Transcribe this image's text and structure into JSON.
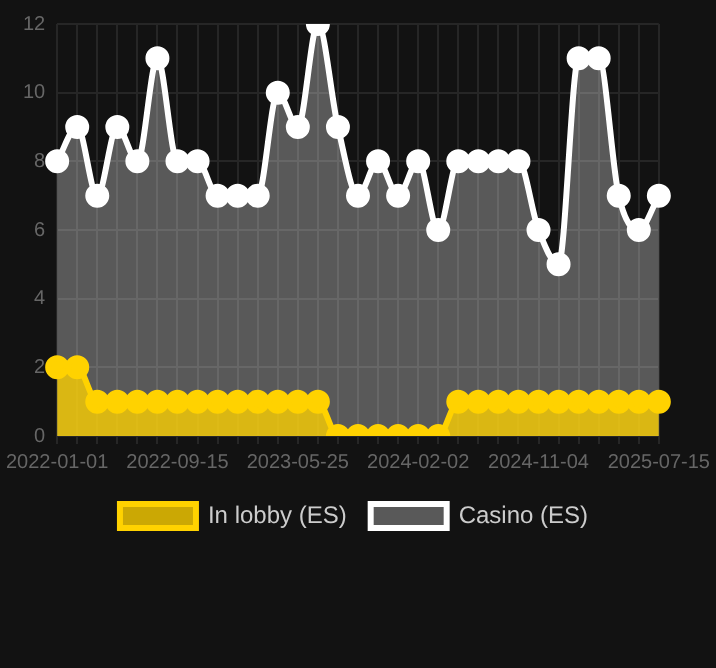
{
  "chart_data": {
    "type": "area",
    "categories": [
      "2022-01-01",
      null,
      null,
      null,
      null,
      null,
      "2022-09-15",
      null,
      null,
      null,
      null,
      null,
      "2023-05-25",
      null,
      null,
      null,
      null,
      null,
      "2024-02-02",
      null,
      null,
      null,
      null,
      null,
      "2024-11-04",
      null,
      null,
      null,
      null,
      null,
      "2025-07-15"
    ],
    "series": [
      {
        "name": "In lobby (ES)",
        "color": "#ffd200",
        "values": [
          2,
          2,
          1,
          1,
          1,
          1,
          1,
          1,
          1,
          1,
          1,
          1,
          1,
          1,
          0,
          0,
          0,
          0,
          0,
          0,
          1,
          1,
          1,
          1,
          1,
          1,
          1,
          1,
          1,
          1,
          1
        ]
      },
      {
        "name": "Casino (ES)",
        "color": "#ffffff",
        "values": [
          8,
          9,
          7,
          9,
          8,
          11,
          8,
          8,
          7,
          7,
          7,
          10,
          9,
          12,
          9,
          7,
          8,
          7,
          8,
          6,
          8,
          8,
          8,
          8,
          6,
          5,
          11,
          11,
          7,
          6,
          7
        ]
      }
    ],
    "ylim": [
      0,
      12
    ],
    "yticks": [
      0,
      2,
      4,
      6,
      8,
      10,
      12
    ],
    "grid": true,
    "legend": "bottom",
    "marker": "circle"
  }
}
